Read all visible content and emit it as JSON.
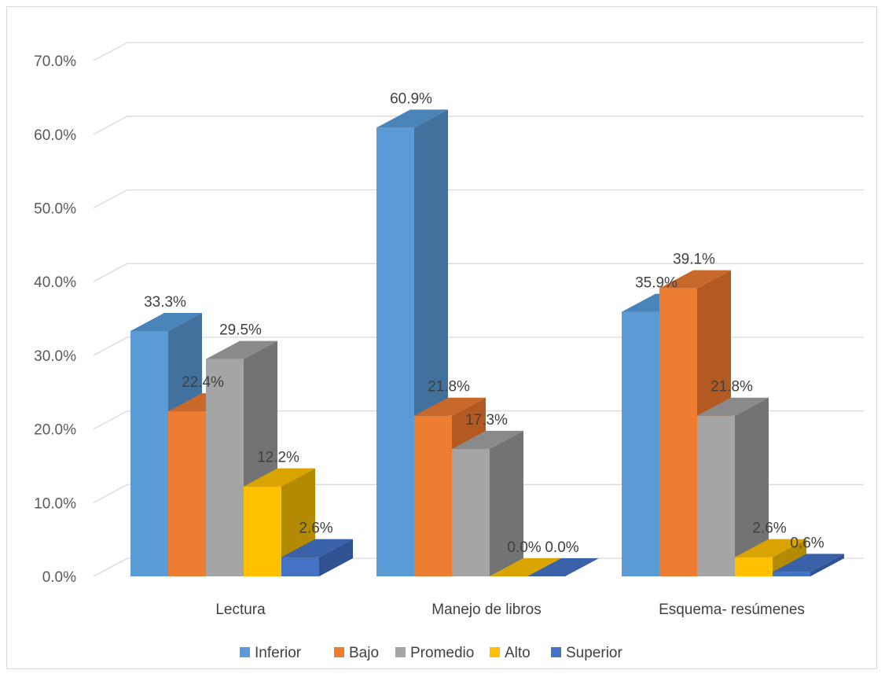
{
  "chart_data": {
    "type": "bar",
    "style": "3d-clustered-column",
    "categories": [
      "Lectura",
      "Manejo de libros",
      "Esquema- resúmenes"
    ],
    "series": [
      {
        "name": "Inferior",
        "values": [
          33.3,
          60.9,
          35.9
        ],
        "color": "#5b9bd5",
        "side": "#41719c",
        "top": "#4b84b8"
      },
      {
        "name": "Bajo",
        "values": [
          22.4,
          21.8,
          39.1
        ],
        "color": "#ed7d31",
        "side": "#b35a22",
        "top": "#c8682a"
      },
      {
        "name": "Promedio",
        "values": [
          29.5,
          17.3,
          21.8
        ],
        "color": "#a5a5a5",
        "side": "#737373",
        "top": "#8a8a8a"
      },
      {
        "name": "Alto",
        "values": [
          12.2,
          0.0,
          2.6
        ],
        "color": "#ffc000",
        "side": "#b48a00",
        "top": "#d9a300"
      },
      {
        "name": "Superior",
        "values": [
          2.6,
          0.0,
          0.6
        ],
        "color": "#4472c4",
        "side": "#2f5390",
        "top": "#3a62a8"
      }
    ],
    "data_labels": [
      [
        "33.3%",
        "60.9%",
        "35.9%"
      ],
      [
        "22.4%",
        "21.8%",
        "39.1%"
      ],
      [
        "29.5%",
        "17.3%",
        "21.8%"
      ],
      [
        "12.2%",
        "0.0%",
        "2.6%"
      ],
      [
        "2.6%",
        "0.0%",
        "0.6%"
      ]
    ],
    "ylim": [
      0,
      70
    ],
    "yticks": [
      "0.0%",
      "10.0%",
      "20.0%",
      "30.0%",
      "40.0%",
      "50.0%",
      "60.0%",
      "70.0%"
    ],
    "grid": true,
    "legend_position": "bottom"
  }
}
